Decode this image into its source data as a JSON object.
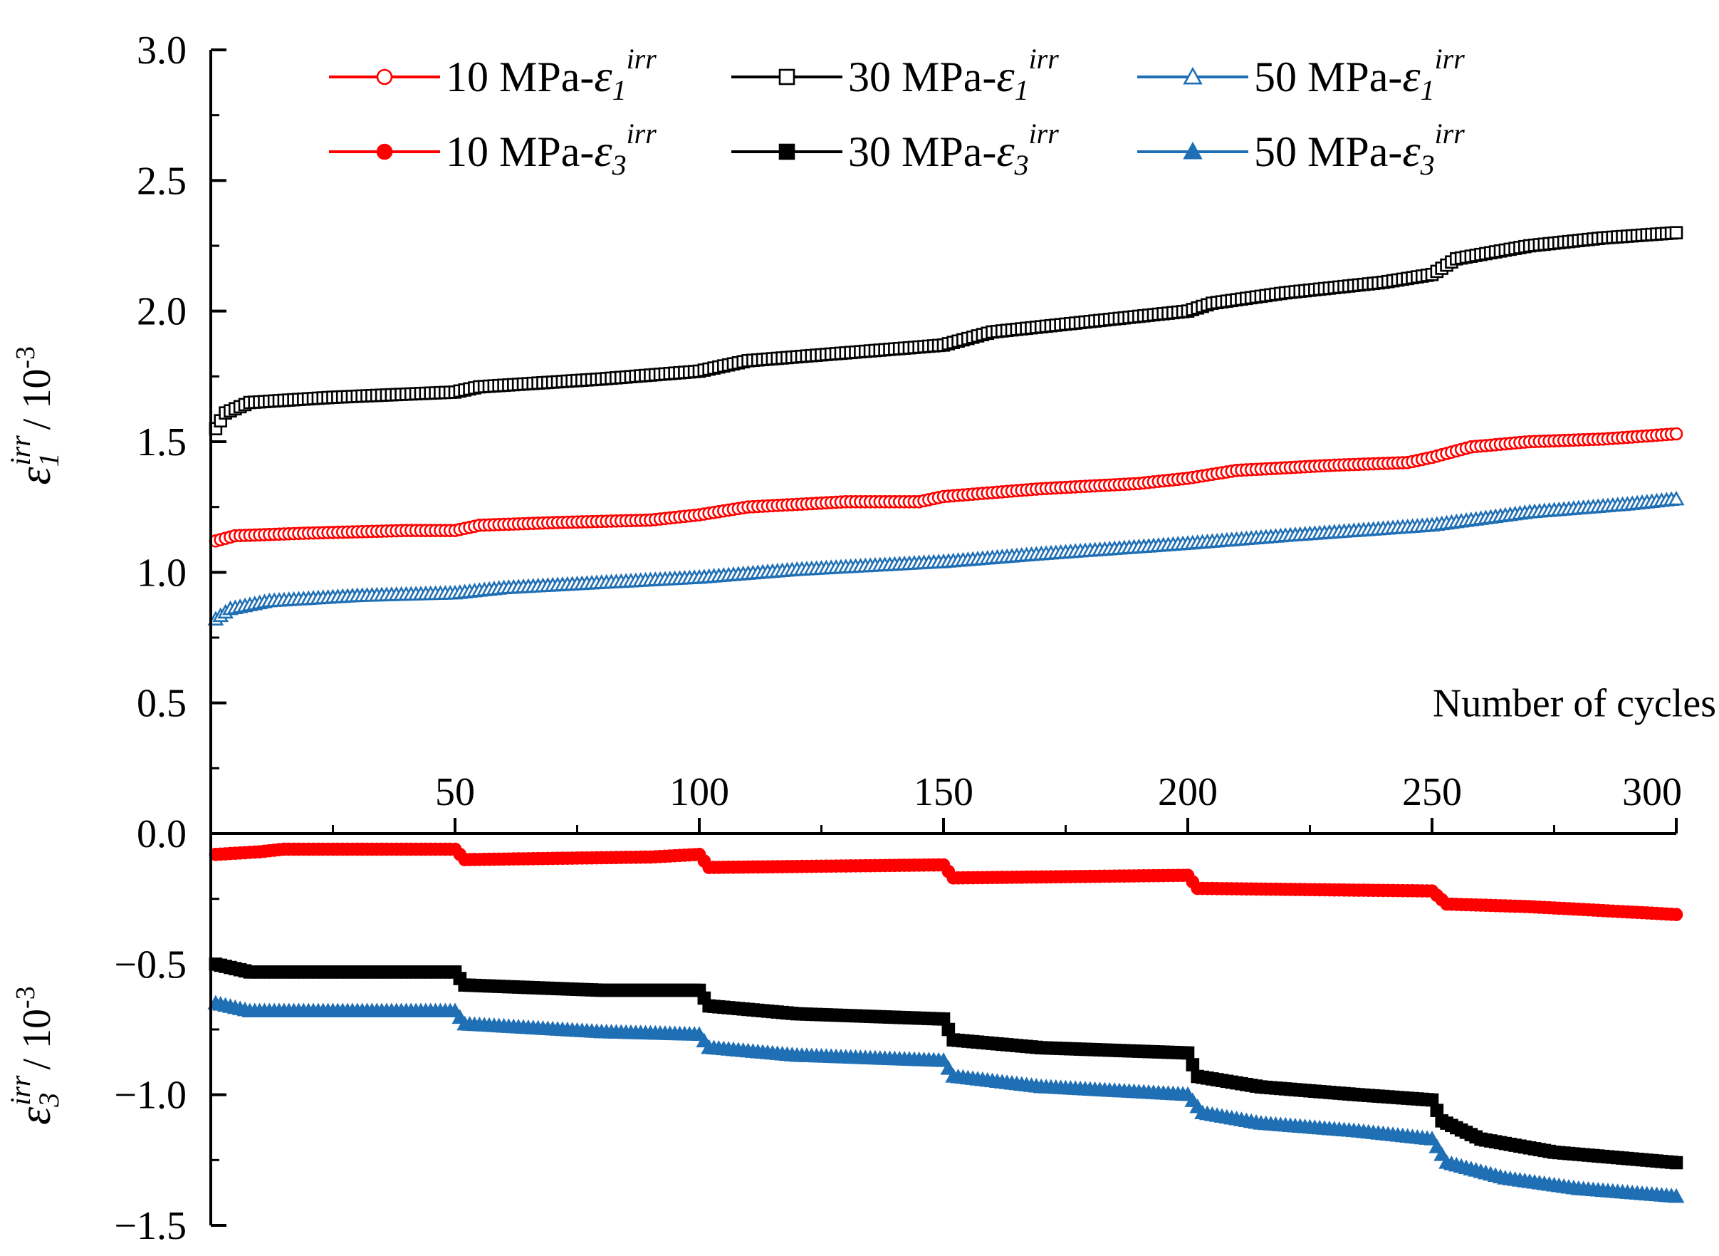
{
  "chart_data": {
    "type": "line",
    "x_axis": {
      "label": "Number of cycles",
      "range": [
        0,
        300
      ],
      "ticks": [
        50,
        100,
        150,
        200,
        250,
        300
      ],
      "position": "at y = 0"
    },
    "y_axis": {
      "range": [
        -1.5,
        3.0
      ],
      "ticks": [
        "3.0",
        "2.5",
        "2.0",
        "1.5",
        "1.0",
        "0.5",
        "0.0",
        "−0.5",
        "−1.0",
        "−1.5"
      ],
      "tick_values": [
        3.0,
        2.5,
        2.0,
        1.5,
        1.0,
        0.5,
        0.0,
        -0.5,
        -1.0,
        -1.5
      ],
      "upper_label": {
        "symbol": "ε",
        "sub": "1",
        "sup": "irr",
        "unit": "/ 10",
        "exp": "-3"
      },
      "lower_label": {
        "symbol": "ε",
        "sub": "3",
        "sup": "irr",
        "unit": "/ 10",
        "exp": "-3"
      }
    },
    "legend": {
      "placement": "top",
      "entries": [
        {
          "text": "10 MPa-",
          "sym": "ε",
          "sub": "1",
          "sup": "irr",
          "color": "#ff0000",
          "marker": "circle-open"
        },
        {
          "text": "30 MPa-",
          "sym": "ε",
          "sub": "1",
          "sup": "irr",
          "color": "#000000",
          "marker": "square-open"
        },
        {
          "text": "50 MPa-",
          "sym": "ε",
          "sub": "1",
          "sup": "irr",
          "color": "#1f6fb5",
          "marker": "triangle-open"
        },
        {
          "text": "10 MPa-",
          "sym": "ε",
          "sub": "3",
          "sup": "irr",
          "color": "#ff0000",
          "marker": "circle-filled"
        },
        {
          "text": "30 MPa-",
          "sym": "ε",
          "sub": "3",
          "sup": "irr",
          "color": "#000000",
          "marker": "square-filled"
        },
        {
          "text": "50 MPa-",
          "sym": "ε",
          "sub": "3",
          "sup": "irr",
          "color": "#1f6fb5",
          "marker": "triangle-filled"
        }
      ]
    },
    "series": [
      {
        "name": "10 MPa-ε1irr",
        "color": "#ff0000",
        "marker": "circle-open",
        "points": [
          [
            1,
            1.12
          ],
          [
            5,
            1.14
          ],
          [
            20,
            1.15
          ],
          [
            40,
            1.16
          ],
          [
            50,
            1.16
          ],
          [
            55,
            1.18
          ],
          [
            70,
            1.19
          ],
          [
            90,
            1.2
          ],
          [
            100,
            1.22
          ],
          [
            110,
            1.25
          ],
          [
            130,
            1.27
          ],
          [
            145,
            1.27
          ],
          [
            150,
            1.29
          ],
          [
            170,
            1.32
          ],
          [
            190,
            1.34
          ],
          [
            200,
            1.36
          ],
          [
            210,
            1.39
          ],
          [
            230,
            1.41
          ],
          [
            245,
            1.42
          ],
          [
            250,
            1.44
          ],
          [
            258,
            1.48
          ],
          [
            270,
            1.5
          ],
          [
            285,
            1.51
          ],
          [
            300,
            1.53
          ]
        ]
      },
      {
        "name": "30 MPa-ε1irr",
        "color": "#000000",
        "marker": "square-open",
        "points": [
          [
            1,
            1.55
          ],
          [
            3,
            1.61
          ],
          [
            8,
            1.65
          ],
          [
            25,
            1.67
          ],
          [
            50,
            1.69
          ],
          [
            55,
            1.71
          ],
          [
            80,
            1.74
          ],
          [
            100,
            1.77
          ],
          [
            110,
            1.81
          ],
          [
            130,
            1.84
          ],
          [
            150,
            1.87
          ],
          [
            160,
            1.92
          ],
          [
            180,
            1.96
          ],
          [
            200,
            2.0
          ],
          [
            205,
            2.03
          ],
          [
            220,
            2.07
          ],
          [
            240,
            2.11
          ],
          [
            250,
            2.14
          ],
          [
            255,
            2.2
          ],
          [
            270,
            2.25
          ],
          [
            285,
            2.28
          ],
          [
            300,
            2.3
          ]
        ]
      },
      {
        "name": "50 MPa-ε1irr",
        "color": "#1f6fb5",
        "marker": "triangle-open",
        "points": [
          [
            1,
            0.82
          ],
          [
            4,
            0.86
          ],
          [
            12,
            0.89
          ],
          [
            30,
            0.91
          ],
          [
            50,
            0.92
          ],
          [
            60,
            0.94
          ],
          [
            80,
            0.96
          ],
          [
            100,
            0.98
          ],
          [
            120,
            1.01
          ],
          [
            150,
            1.04
          ],
          [
            170,
            1.07
          ],
          [
            200,
            1.11
          ],
          [
            220,
            1.14
          ],
          [
            250,
            1.18
          ],
          [
            270,
            1.23
          ],
          [
            290,
            1.26
          ],
          [
            300,
            1.28
          ]
        ]
      },
      {
        "name": "10 MPa-ε3irr",
        "color": "#ff0000",
        "marker": "circle-filled",
        "points": [
          [
            1,
            -0.08
          ],
          [
            10,
            -0.07
          ],
          [
            15,
            -0.06
          ],
          [
            50,
            -0.06
          ],
          [
            52,
            -0.1
          ],
          [
            90,
            -0.09
          ],
          [
            100,
            -0.08
          ],
          [
            102,
            -0.13
          ],
          [
            150,
            -0.12
          ],
          [
            152,
            -0.17
          ],
          [
            200,
            -0.16
          ],
          [
            202,
            -0.21
          ],
          [
            250,
            -0.22
          ],
          [
            253,
            -0.27
          ],
          [
            270,
            -0.28
          ],
          [
            300,
            -0.31
          ]
        ]
      },
      {
        "name": "30 MPa-ε3irr",
        "color": "#000000",
        "marker": "square-filled",
        "points": [
          [
            1,
            -0.5
          ],
          [
            8,
            -0.53
          ],
          [
            50,
            -0.53
          ],
          [
            52,
            -0.58
          ],
          [
            80,
            -0.6
          ],
          [
            100,
            -0.6
          ],
          [
            102,
            -0.66
          ],
          [
            120,
            -0.69
          ],
          [
            150,
            -0.71
          ],
          [
            152,
            -0.79
          ],
          [
            170,
            -0.82
          ],
          [
            200,
            -0.84
          ],
          [
            202,
            -0.93
          ],
          [
            215,
            -0.97
          ],
          [
            235,
            -1.0
          ],
          [
            250,
            -1.02
          ],
          [
            252,
            -1.1
          ],
          [
            260,
            -1.17
          ],
          [
            275,
            -1.22
          ],
          [
            300,
            -1.26
          ]
        ]
      },
      {
        "name": "50 MPa-ε3irr",
        "color": "#1f6fb5",
        "marker": "triangle-filled",
        "points": [
          [
            1,
            -0.65
          ],
          [
            8,
            -0.68
          ],
          [
            50,
            -0.68
          ],
          [
            52,
            -0.73
          ],
          [
            80,
            -0.76
          ],
          [
            100,
            -0.77
          ],
          [
            102,
            -0.82
          ],
          [
            120,
            -0.85
          ],
          [
            150,
            -0.87
          ],
          [
            152,
            -0.93
          ],
          [
            170,
            -0.97
          ],
          [
            200,
            -1.0
          ],
          [
            203,
            -1.07
          ],
          [
            215,
            -1.11
          ],
          [
            235,
            -1.14
          ],
          [
            250,
            -1.17
          ],
          [
            253,
            -1.26
          ],
          [
            265,
            -1.32
          ],
          [
            280,
            -1.36
          ],
          [
            300,
            -1.39
          ]
        ]
      }
    ]
  }
}
